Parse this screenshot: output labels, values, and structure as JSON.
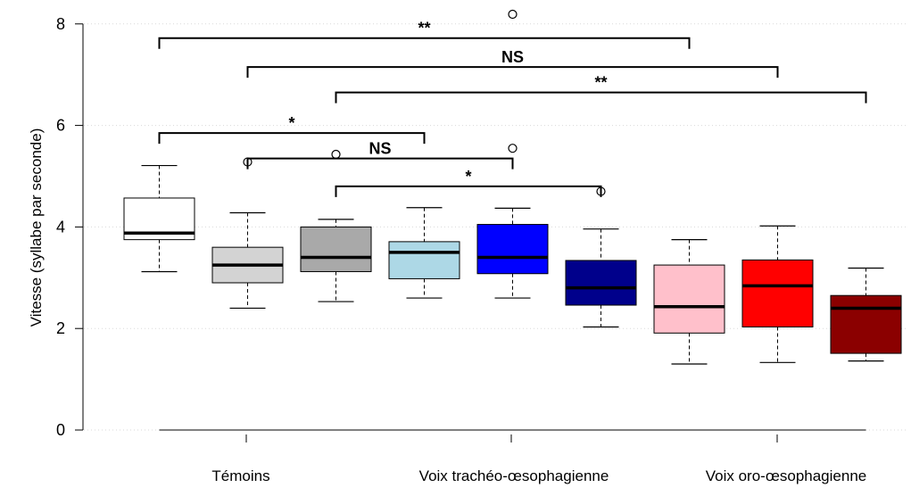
{
  "chart_data": {
    "type": "box",
    "ylabel": "Vitesse (syllabe par seconde)",
    "xlabel": "",
    "ylim": [
      0,
      8
    ],
    "yticks": [
      "0",
      "2",
      "4",
      "6",
      "8"
    ],
    "grid": true,
    "categories": [
      "Témoins",
      "Voix trachéo-œsophagienne",
      "Voix oro-œsophagienne"
    ],
    "boxes": [
      {
        "group": 0,
        "color": "#ffffff",
        "whisker_low": 3.12,
        "q1": 3.75,
        "median": 3.88,
        "q3": 4.57,
        "whisker_high": 5.21,
        "outliers": []
      },
      {
        "group": 0,
        "color": "#d3d3d3",
        "whisker_low": 2.4,
        "q1": 2.9,
        "median": 3.25,
        "q3": 3.6,
        "whisker_high": 4.28,
        "outliers": [
          5.28
        ]
      },
      {
        "group": 0,
        "color": "#a9a9a9",
        "whisker_low": 2.53,
        "q1": 3.12,
        "median": 3.4,
        "q3": 4.0,
        "whisker_high": 4.15,
        "outliers": [
          5.43
        ]
      },
      {
        "group": 1,
        "color": "#add8e6",
        "whisker_low": 2.6,
        "q1": 2.98,
        "median": 3.5,
        "q3": 3.71,
        "whisker_high": 4.38,
        "outliers": []
      },
      {
        "group": 1,
        "color": "#0000ff",
        "whisker_low": 2.6,
        "q1": 3.08,
        "median": 3.4,
        "q3": 4.05,
        "whisker_high": 4.37,
        "outliers": [
          5.55,
          8.19
        ]
      },
      {
        "group": 1,
        "color": "#00008b",
        "whisker_low": 2.03,
        "q1": 2.46,
        "median": 2.8,
        "q3": 3.34,
        "whisker_high": 3.96,
        "outliers": [
          4.7
        ]
      },
      {
        "group": 2,
        "color": "#ffc0cb",
        "whisker_low": 1.3,
        "q1": 1.91,
        "median": 2.43,
        "q3": 3.25,
        "whisker_high": 3.75,
        "outliers": []
      },
      {
        "group": 2,
        "color": "#ff0000",
        "whisker_low": 1.33,
        "q1": 2.03,
        "median": 2.84,
        "q3": 3.35,
        "whisker_high": 4.02,
        "outliers": []
      },
      {
        "group": 2,
        "color": "#8b0000",
        "whisker_low": 1.36,
        "q1": 1.51,
        "median": 2.4,
        "q3": 2.65,
        "whisker_high": 3.19,
        "outliers": []
      }
    ],
    "comparisons": [
      {
        "from": 1,
        "to": 7,
        "y": 7.72,
        "label": "**"
      },
      {
        "from": 2,
        "to": 8,
        "y": 7.15,
        "label": "NS"
      },
      {
        "from": 3,
        "to": 9,
        "y": 6.65,
        "label": "**"
      },
      {
        "from": 1,
        "to": 4,
        "y": 5.85,
        "label": "*"
      },
      {
        "from": 2,
        "to": 5,
        "y": 5.35,
        "label": "NS"
      },
      {
        "from": 3,
        "to": 6,
        "y": 4.8,
        "label": "*"
      }
    ]
  }
}
